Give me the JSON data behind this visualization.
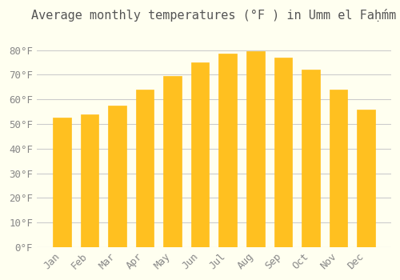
{
  "title": "Average monthly temperatures (°F ) in Umm el Faḥḿm",
  "months": [
    "Jan",
    "Feb",
    "Mar",
    "Apr",
    "May",
    "Jun",
    "Jul",
    "Aug",
    "Sep",
    "Oct",
    "Nov",
    "Dec"
  ],
  "values": [
    52.5,
    54,
    57.5,
    64,
    69.5,
    75,
    78.5,
    79.5,
    77,
    72,
    64,
    56
  ],
  "bar_color_face": "#FFC020",
  "bar_color_edge": "#FFD060",
  "background_color": "#FFFFF0",
  "grid_color": "#CCCCCC",
  "title_fontsize": 11,
  "tick_fontsize": 9,
  "ylim": [
    0,
    88
  ],
  "yticks": [
    0,
    10,
    20,
    30,
    40,
    50,
    60,
    70,
    80
  ]
}
